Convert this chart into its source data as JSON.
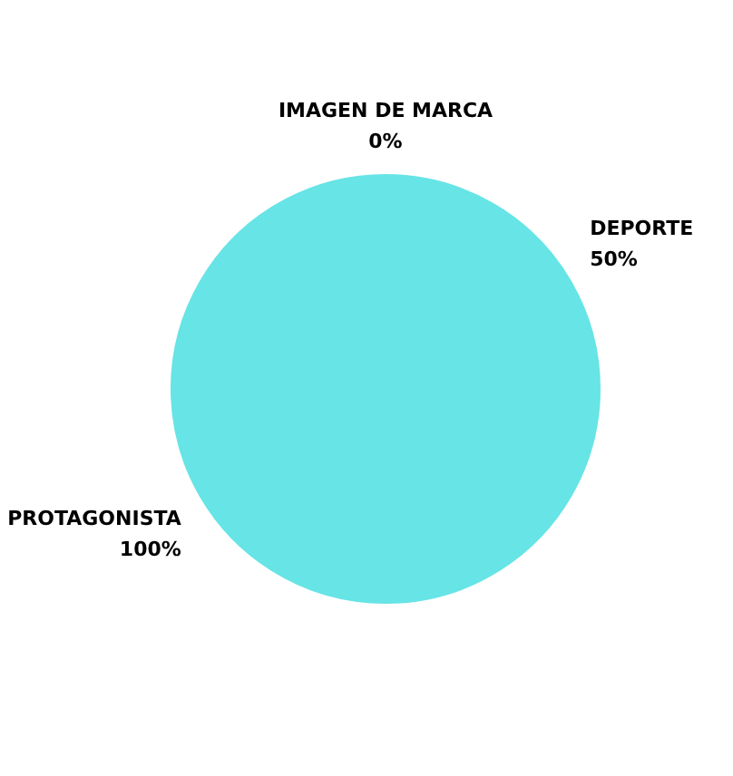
{
  "chart_data": {
    "type": "pie",
    "categories": [
      "IMAGEN DE MARCA",
      "DEPORTE",
      "PROTAGONISTA"
    ],
    "values": [
      0,
      50,
      100
    ],
    "colors": [
      "#67e4e6",
      "#67e4e6",
      "#67e4e6"
    ],
    "value_labels": [
      "0%",
      "50%",
      "100%"
    ]
  }
}
